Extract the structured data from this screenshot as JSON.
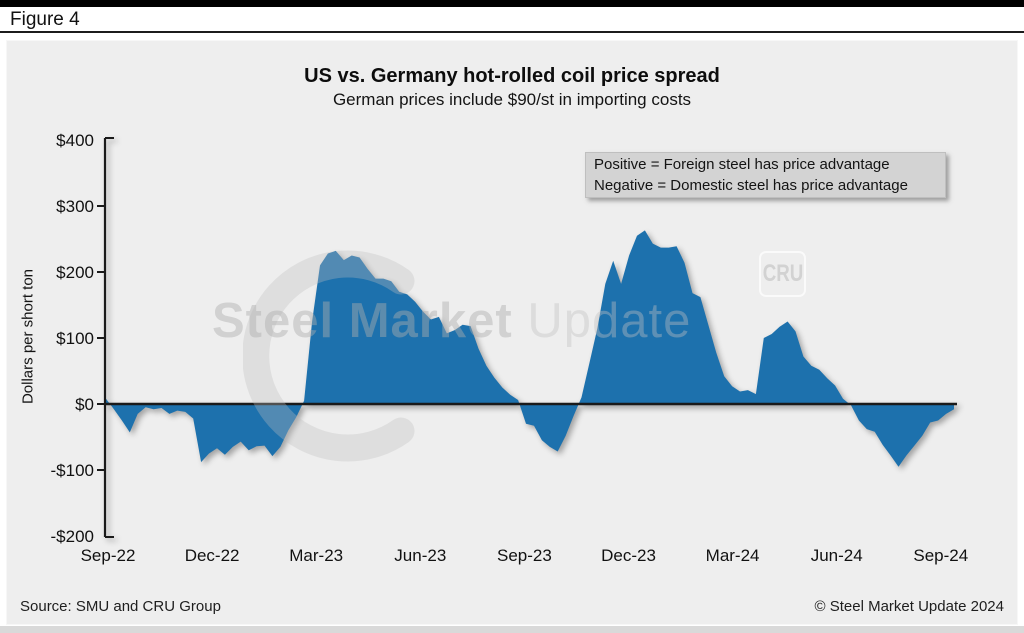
{
  "figure_label": "Figure 4",
  "chart_data": {
    "type": "area",
    "title": "US vs. Germany hot-rolled coil price spread",
    "subtitle": "German prices include $90/st in importing costs",
    "ylabel": "Dollars per short ton",
    "ylim": [
      -200,
      400
    ],
    "baseline": 0,
    "grid": false,
    "legend_position": "none",
    "fill_color": "#1d71ad",
    "y_ticks": [
      {
        "label": "$400",
        "value": 400
      },
      {
        "label": "$300",
        "value": 300
      },
      {
        "label": "$200",
        "value": 200
      },
      {
        "label": "$100",
        "value": 100
      },
      {
        "label": "$0",
        "value": 0
      },
      {
        "label": "-$100",
        "value": -100
      },
      {
        "label": "-$200",
        "value": -200
      }
    ],
    "x_ticks": [
      "Sep-22",
      "Dec-22",
      "Mar-23",
      "Jun-23",
      "Sep-23",
      "Dec-23",
      "Mar-24",
      "Jun-24",
      "Sep-24"
    ],
    "series": [
      {
        "name": "spread_usd_per_short_ton",
        "values": [
          8,
          -8,
          -25,
          -43,
          -15,
          -5,
          -8,
          -6,
          -15,
          -10,
          -12,
          -22,
          -88,
          -75,
          -67,
          -77,
          -65,
          -57,
          -70,
          -64,
          -63,
          -79,
          -65,
          -40,
          -20,
          5,
          125,
          210,
          228,
          232,
          218,
          225,
          222,
          205,
          190,
          190,
          186,
          170,
          166,
          155,
          140,
          128,
          132,
          107,
          112,
          120,
          118,
          84,
          58,
          40,
          25,
          14,
          6,
          -30,
          -33,
          -55,
          -65,
          -72,
          -48,
          -18,
          10,
          62,
          115,
          182,
          217,
          182,
          225,
          255,
          263,
          243,
          237,
          237,
          239,
          214,
          168,
          162,
          120,
          78,
          42,
          27,
          19,
          21,
          15,
          100,
          106,
          117,
          125,
          110,
          72,
          58,
          52,
          39,
          28,
          8,
          -2,
          -25,
          -38,
          -42,
          -62,
          -78,
          -95,
          -78,
          -63,
          -48,
          -28,
          -25,
          -15,
          -8
        ]
      }
    ],
    "annotation_lines": [
      "Positive = Foreign steel has price advantage",
      "Negative = Domestic steel has price advantage"
    ]
  },
  "watermark": {
    "brand_bold": "Steel Market",
    "brand_light": " Update",
    "cru": "CRU"
  },
  "footer": {
    "source": "Source: SMU and CRU Group",
    "copyright": "© Steel Market Update 2024"
  }
}
